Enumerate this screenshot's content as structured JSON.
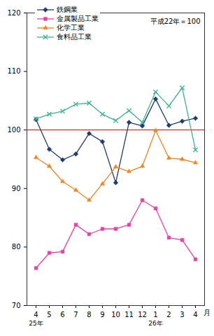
{
  "chart_data": {
    "type": "line",
    "annotations": [
      "平成22年＝100"
    ],
    "categories": [
      "4",
      "5",
      "6",
      "7",
      "8",
      "9",
      "10",
      "11",
      "12",
      "1",
      "2",
      "3",
      "4"
    ],
    "category_groups": [
      {
        "label": "25年",
        "start": 0
      },
      {
        "label": "26年",
        "start": 9
      }
    ],
    "x_unit": "月",
    "ylim": [
      70,
      120
    ],
    "yticks": [
      70,
      80,
      90,
      100,
      110,
      120
    ],
    "grid": false,
    "legend": "top-left",
    "reference_line": {
      "value": 100,
      "color": "#e8332a"
    },
    "series": [
      {
        "name": "鉄鋼業",
        "color": "#1f3b73",
        "marker": "diamond",
        "values": [
          101.8,
          96.7,
          94.9,
          95.9,
          99.4,
          98.0,
          91.0,
          101.3,
          100.7,
          105.3,
          100.8,
          101.5,
          102.0
        ]
      },
      {
        "name": "金属製品工業",
        "color": "#ee3fa6",
        "marker": "square",
        "values": [
          76.4,
          79.0,
          79.2,
          83.8,
          82.2,
          83.1,
          83.1,
          83.8,
          88.0,
          86.6,
          81.6,
          81.2,
          77.9
        ]
      },
      {
        "name": "化学工業",
        "color": "#f5841f",
        "marker": "triangle",
        "values": [
          95.3,
          93.8,
          91.2,
          89.7,
          88.0,
          90.8,
          93.7,
          92.9,
          93.8,
          99.9,
          95.2,
          95.0,
          94.4
        ]
      },
      {
        "name": "食料品工業",
        "color": "#3fb58a",
        "marker": "times",
        "values": [
          101.9,
          102.7,
          103.2,
          104.4,
          104.6,
          102.7,
          101.6,
          103.3,
          101.3,
          106.5,
          104.1,
          107.2,
          96.6
        ]
      }
    ]
  }
}
